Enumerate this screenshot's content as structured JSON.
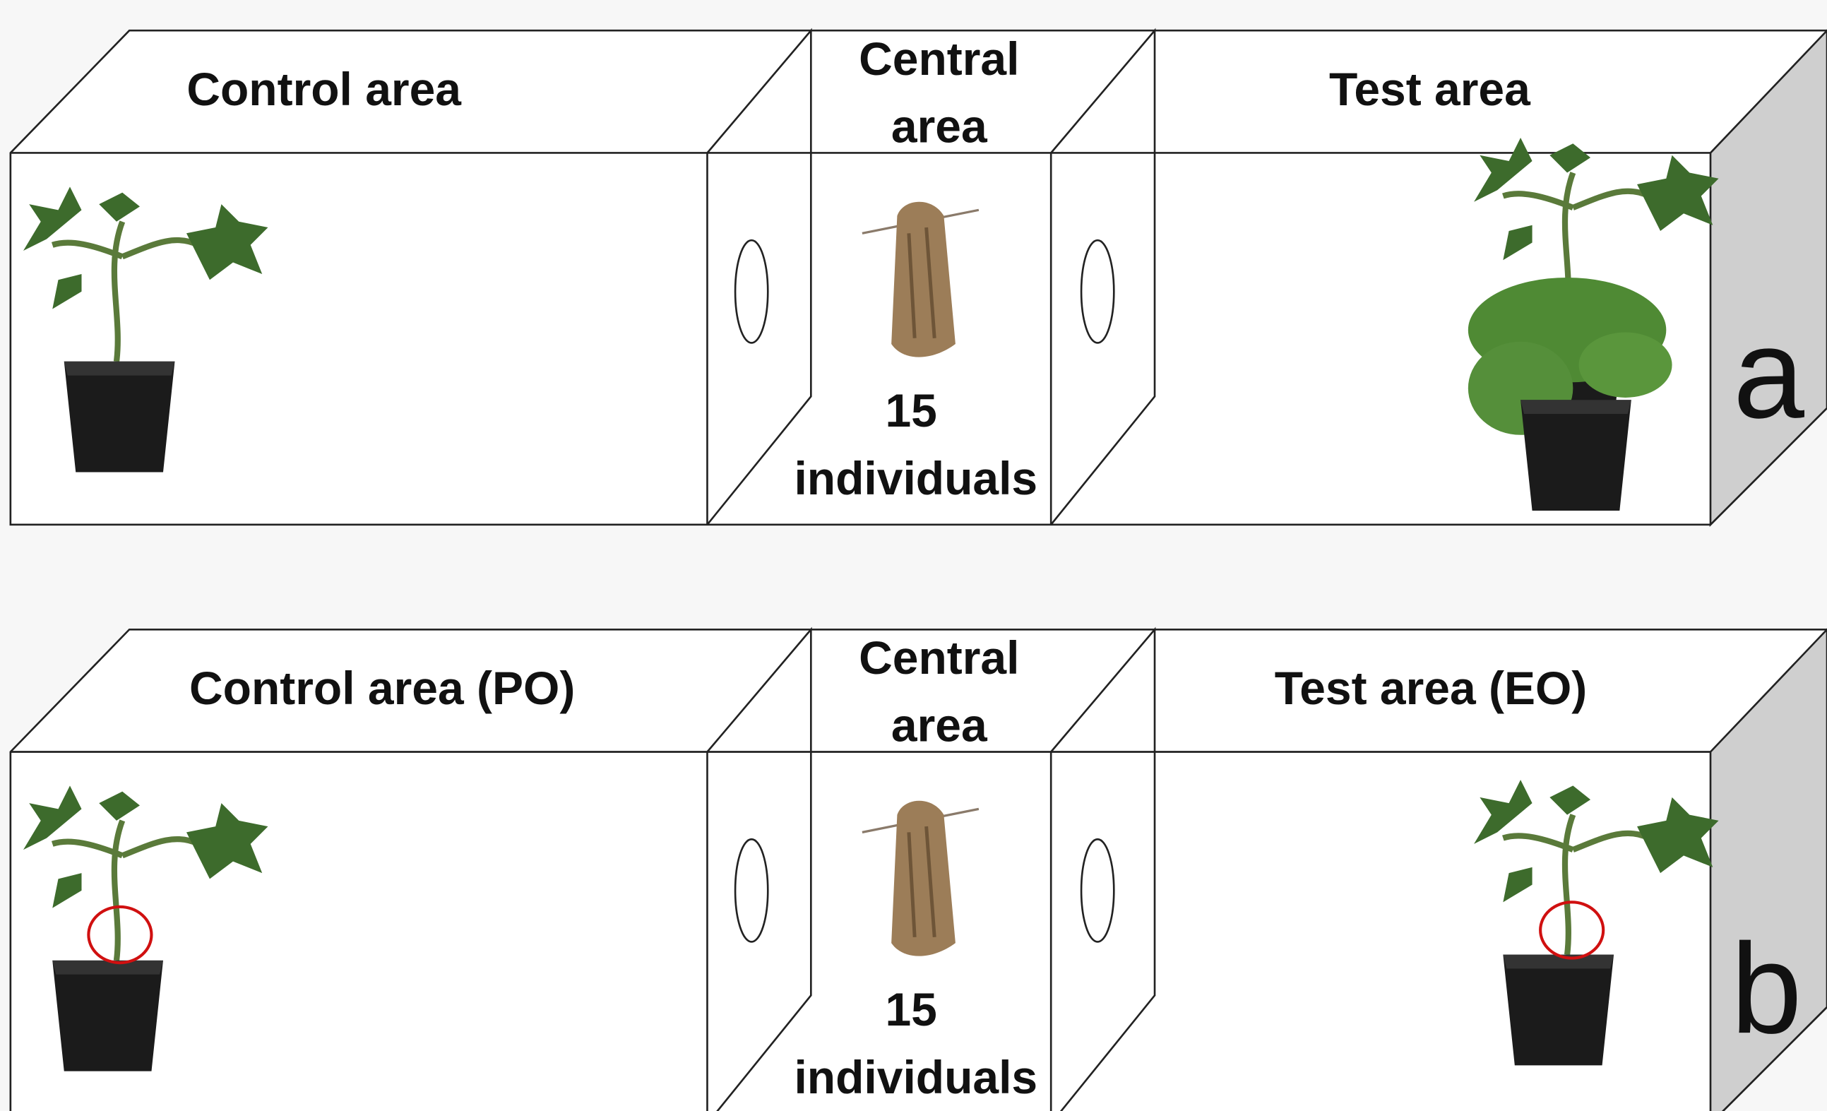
{
  "panels": [
    {
      "label": "a",
      "control_area": "Control area",
      "central_area": [
        "Central",
        "area"
      ],
      "count": [
        "15",
        "individuals"
      ],
      "test_area": "Test area"
    },
    {
      "label": "b",
      "control_area": "Control area (PO)",
      "central_area": [
        "Central",
        "area"
      ],
      "count": [
        "15",
        "individuals"
      ],
      "test_area": "Test area (EO)"
    }
  ]
}
